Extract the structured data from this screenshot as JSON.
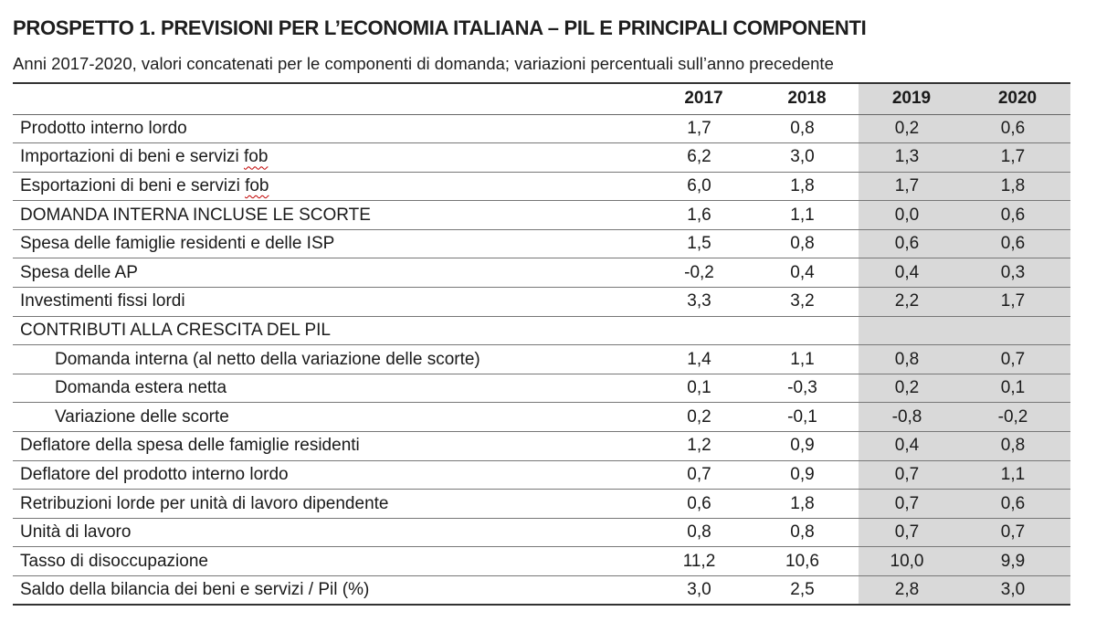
{
  "title": "PROSPETTO 1. PREVISIONI PER L’ECONOMIA ITALIANA – PIL E PRINCIPALI COMPONENTI",
  "subtitle": "Anni 2017-2020, valori concatenati per le componenti di domanda; variazioni percentuali sull’anno precedente",
  "columns": [
    "2017",
    "2018",
    "2019",
    "2020"
  ],
  "shaded_color": "#d9d9d9",
  "rows": [
    {
      "label": "Prodotto interno lordo",
      "values": [
        "1,7",
        "0,8",
        "0,2",
        "0,6"
      ]
    },
    {
      "label_main": "Importazioni di beni e servizi ",
      "label_flag": "fob",
      "values": [
        "6,2",
        "3,0",
        "1,3",
        "1,7"
      ]
    },
    {
      "label_main": "Esportazioni di beni e servizi ",
      "label_flag": "fob",
      "values": [
        "6,0",
        "1,8",
        "1,7",
        "1,8"
      ]
    },
    {
      "label": "DOMANDA INTERNA INCLUSE LE SCORTE",
      "values": [
        "1,6",
        "1,1",
        "0,0",
        "0,6"
      ]
    },
    {
      "label": "Spesa delle famiglie residenti e delle ISP",
      "values": [
        "1,5",
        "0,8",
        "0,6",
        "0,6"
      ]
    },
    {
      "label": "Spesa delle AP",
      "values": [
        "-0,2",
        "0,4",
        "0,4",
        "0,3"
      ]
    },
    {
      "label": "Investimenti fissi lordi",
      "values": [
        "3,3",
        "3,2",
        "2,2",
        "1,7"
      ]
    },
    {
      "label": "CONTRIBUTI ALLA CRESCITA DEL PIL",
      "values": [
        "",
        "",
        "",
        ""
      ]
    },
    {
      "label": "Domanda interna (al netto della variazione delle scorte)",
      "values": [
        "1,4",
        "1,1",
        "0,8",
        "0,7"
      ]
    },
    {
      "label": "Domanda estera netta",
      "values": [
        "0,1",
        "-0,3",
        "0,2",
        "0,1"
      ]
    },
    {
      "label": "Variazione delle scorte",
      "values": [
        "0,2",
        "-0,1",
        "-0,8",
        "-0,2"
      ]
    },
    {
      "label": "Deflatore della spesa delle famiglie residenti",
      "values": [
        "1,2",
        "0,9",
        "0,4",
        "0,8"
      ]
    },
    {
      "label": "Deflatore del prodotto interno lordo",
      "values": [
        "0,7",
        "0,9",
        "0,7",
        "1,1"
      ]
    },
    {
      "label": "Retribuzioni lorde per unità di lavoro dipendente",
      "values": [
        "0,6",
        "1,8",
        "0,7",
        "0,6"
      ]
    },
    {
      "label": "Unità di lavoro",
      "values": [
        "0,8",
        "0,8",
        "0,7",
        "0,7"
      ]
    },
    {
      "label": "Tasso di disoccupazione",
      "values": [
        "11,2",
        "10,6",
        "10,0",
        "9,9"
      ]
    },
    {
      "label": "Saldo della bilancia dei beni e servizi / Pil (%)",
      "values": [
        "3,0",
        "2,5",
        "2,8",
        "3,0"
      ]
    }
  ]
}
